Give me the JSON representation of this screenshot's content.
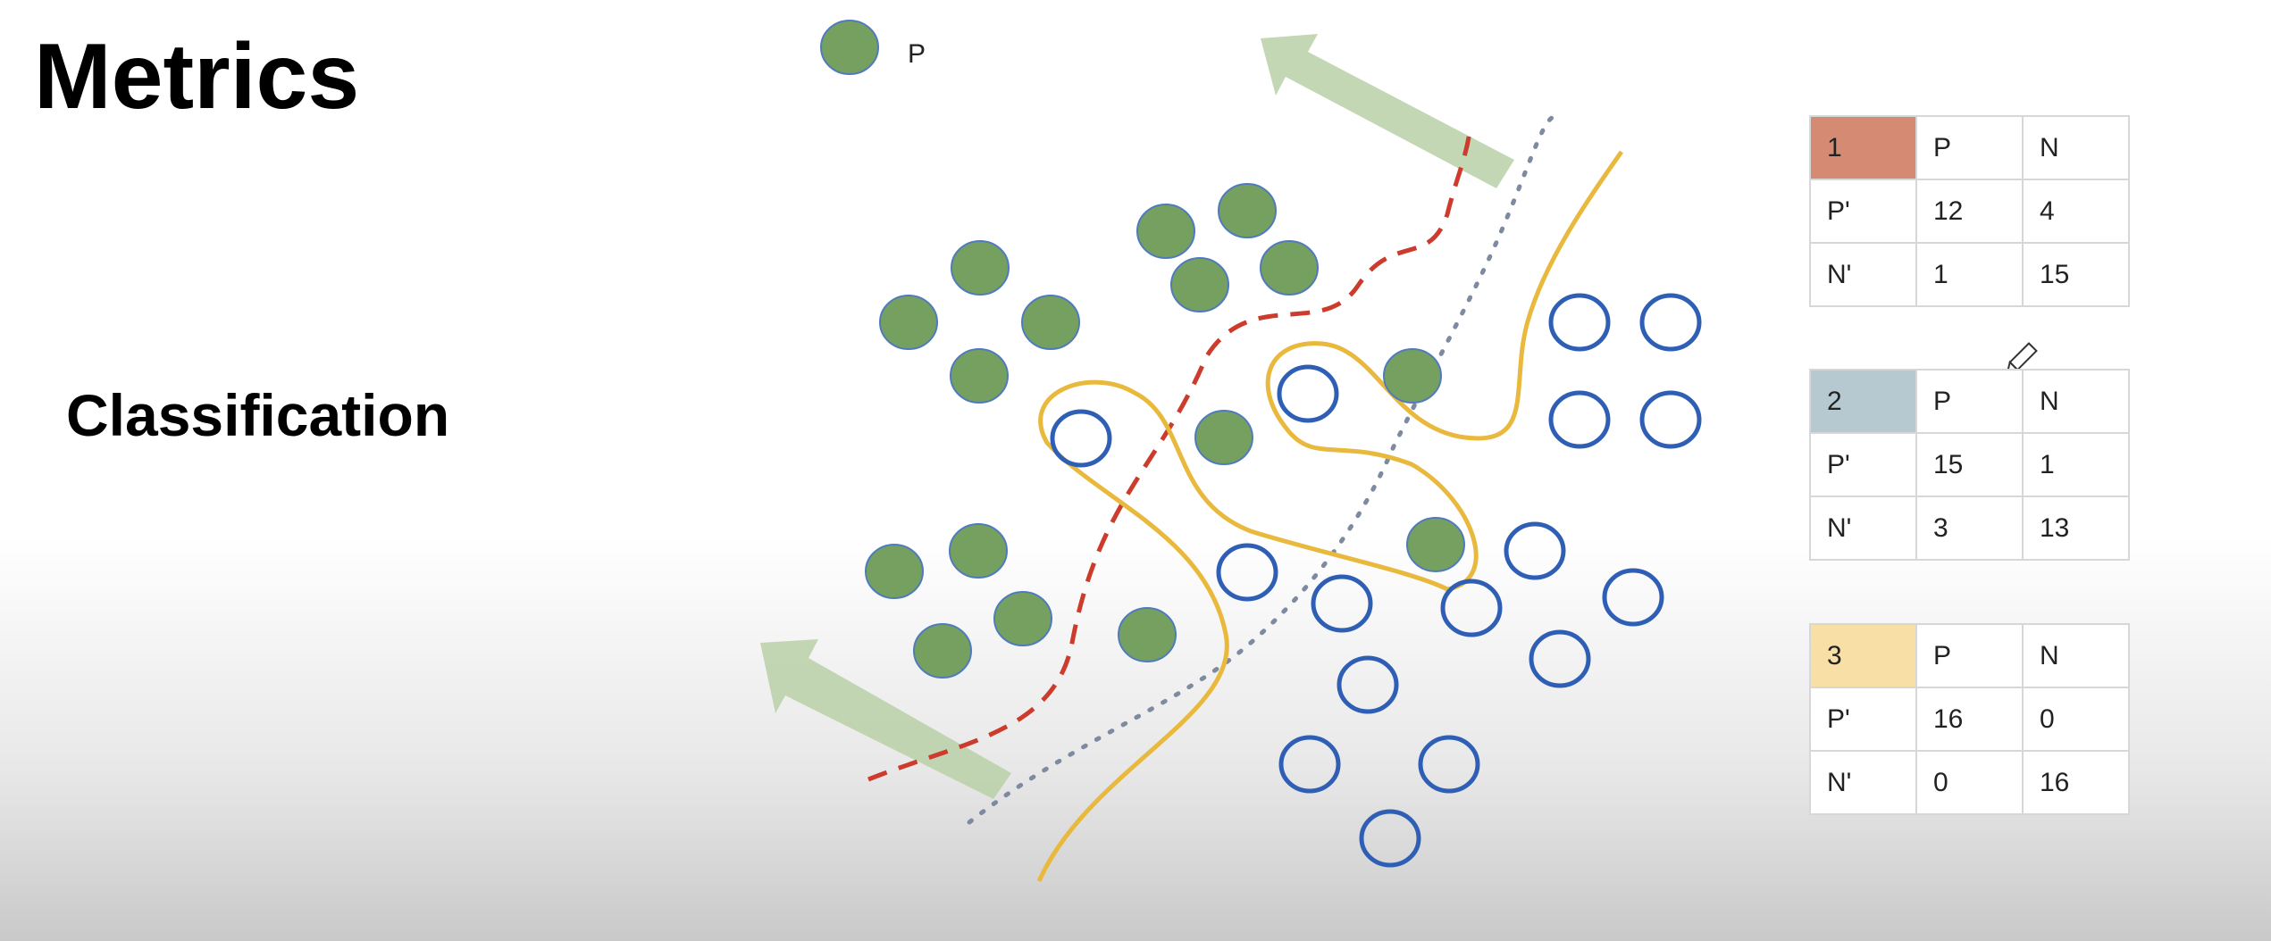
{
  "title": "Metrics",
  "subtitle": "Classification",
  "legend": {
    "label": "P",
    "marker_color": "#76a060",
    "negative_marker_color": "#2f5fb5"
  },
  "boundary_colors": {
    "model_1": "#cc3b2b",
    "model_2": "#7d8aa0",
    "model_3": "#e9b93d",
    "arrow": "#b9d0a8"
  },
  "matrices": [
    {
      "id": "1",
      "header_color": "#d58a73",
      "columns": [
        "P",
        "N"
      ],
      "rows": [
        {
          "label": "P'",
          "values": [
            "12",
            "4"
          ]
        },
        {
          "label": "N'",
          "values": [
            "1",
            "15"
          ]
        }
      ]
    },
    {
      "id": "2",
      "header_color": "#b6c8d0",
      "columns": [
        "P",
        "N"
      ],
      "rows": [
        {
          "label": "P'",
          "values": [
            "15",
            "1"
          ]
        },
        {
          "label": "N'",
          "values": [
            "3",
            "13"
          ]
        }
      ]
    },
    {
      "id": "3",
      "header_color": "#f7dfa6",
      "columns": [
        "P",
        "N"
      ],
      "rows": [
        {
          "label": "P'",
          "values": [
            "16",
            "0"
          ]
        },
        {
          "label": "N'",
          "values": [
            "0",
            "16"
          ]
        }
      ]
    }
  ]
}
